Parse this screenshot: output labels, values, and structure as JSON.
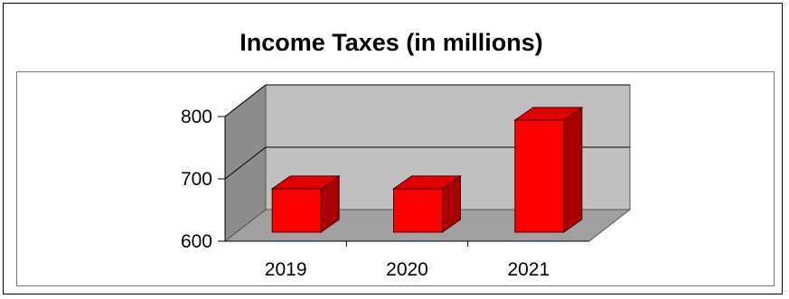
{
  "chart_data": {
    "type": "bar",
    "title": "Income Taxes (in millions)",
    "categories": [
      "2019",
      "2020",
      "2021"
    ],
    "values": [
      690,
      690,
      800
    ],
    "ylim": [
      600,
      800
    ],
    "yticks": [
      "600",
      "700",
      "800"
    ],
    "grid": true,
    "legend": "none",
    "colors": {
      "bar_front": "#ff0000",
      "bar_top": "#e00000",
      "bar_side": "#a80000",
      "back_wall": "#c0c0c0",
      "side_wall": "#8c8c8c",
      "floor": "#a0a0a0"
    }
  }
}
